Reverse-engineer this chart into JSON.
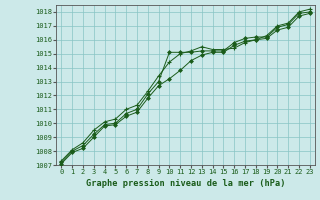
{
  "title": "Graphe pression niveau de la mer (hPa)",
  "background_color": "#cce9e9",
  "plot_bg_color": "#cce9e9",
  "grid_color": "#88c4c4",
  "line_color": "#1a5c1a",
  "marker_color": "#1a5c1a",
  "xlim": [
    -0.5,
    23.5
  ],
  "ylim": [
    1007,
    1018.5
  ],
  "xticks": [
    0,
    1,
    2,
    3,
    4,
    5,
    6,
    7,
    8,
    9,
    10,
    11,
    12,
    13,
    14,
    15,
    16,
    17,
    18,
    19,
    20,
    21,
    22,
    23
  ],
  "yticks": [
    1007,
    1008,
    1009,
    1010,
    1011,
    1012,
    1013,
    1014,
    1015,
    1016,
    1017,
    1018
  ],
  "series1_x": [
    0,
    1,
    2,
    3,
    4,
    5,
    6,
    7,
    8,
    9,
    10,
    11,
    12,
    13,
    14,
    15,
    16,
    17,
    18,
    19,
    20,
    21,
    22,
    23
  ],
  "series1_y": [
    1007.2,
    1008.0,
    1008.4,
    1009.2,
    1009.9,
    1010.0,
    1010.7,
    1011.0,
    1012.1,
    1013.0,
    1015.1,
    1015.1,
    1015.1,
    1015.2,
    1015.2,
    1015.2,
    1015.8,
    1016.1,
    1016.2,
    1016.2,
    1016.9,
    1017.1,
    1017.9,
    1018.0
  ],
  "series2_x": [
    0,
    1,
    2,
    3,
    4,
    5,
    6,
    7,
    8,
    9,
    10,
    11,
    12,
    13,
    14,
    15,
    16,
    17,
    18,
    19,
    20,
    21,
    22,
    23
  ],
  "series2_y": [
    1007.3,
    1008.1,
    1008.6,
    1009.5,
    1010.1,
    1010.3,
    1011.0,
    1011.3,
    1012.3,
    1013.4,
    1014.4,
    1015.0,
    1015.2,
    1015.5,
    1015.3,
    1015.3,
    1015.4,
    1015.8,
    1016.0,
    1016.3,
    1017.0,
    1017.2,
    1018.0,
    1018.2
  ],
  "series3_x": [
    0,
    1,
    2,
    3,
    4,
    5,
    6,
    7,
    8,
    9,
    10,
    11,
    12,
    13,
    14,
    15,
    16,
    17,
    18,
    19,
    20,
    21,
    22,
    23
  ],
  "series3_y": [
    1007.1,
    1007.9,
    1008.2,
    1009.0,
    1009.8,
    1009.9,
    1010.5,
    1010.8,
    1011.8,
    1012.7,
    1013.2,
    1013.8,
    1014.5,
    1014.9,
    1015.1,
    1015.1,
    1015.6,
    1015.9,
    1016.0,
    1016.1,
    1016.7,
    1016.9,
    1017.7,
    1017.9
  ],
  "tick_fontsize": 5.0,
  "xlabel_fontsize": 6.2
}
